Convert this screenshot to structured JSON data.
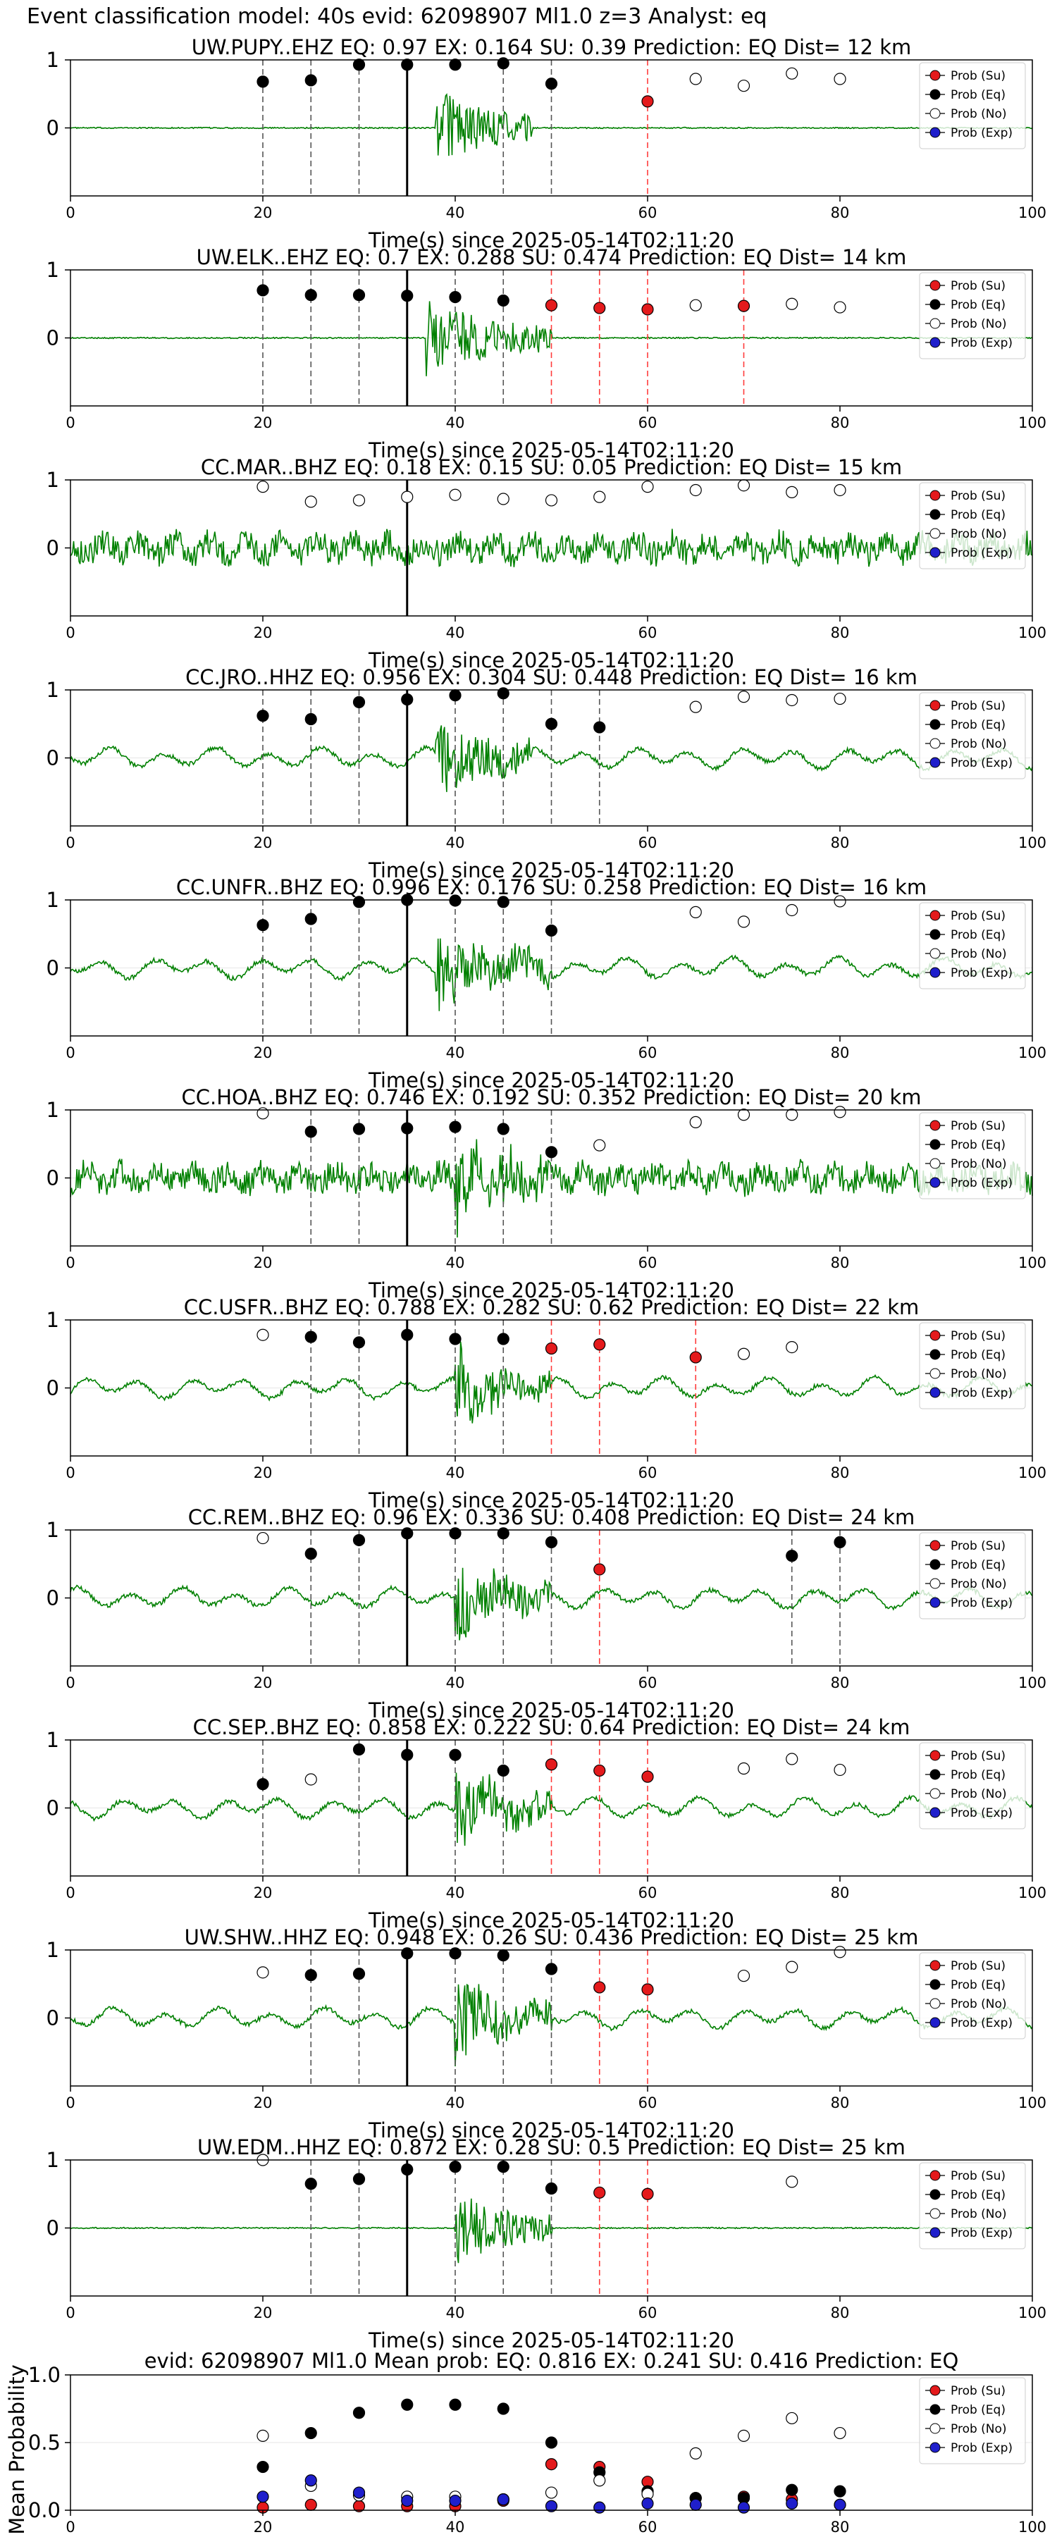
{
  "figure": {
    "main_title": "Event classification model: 40s evid: 62098907 Ml1.0 z=3 Analyst: eq"
  },
  "legend_labels": [
    "Prob (Su)",
    "Prob (Eq)",
    "Prob (No)",
    "Prob (Exp)"
  ],
  "colors": {
    "su": "#e41a1c",
    "eq": "#000000",
    "no": "#ffffff",
    "exp": "#1f1fcc",
    "trace": "#008000",
    "su_line": "#ff3b3b"
  },
  "chart_data": [
    {
      "type": "scatter",
      "title": "UW.PUPY..EHZ   EQ: 0.97  EX: 0.164  SU: 0.39   Prediction: EQ    Dist= 12 km",
      "xlabel": "Time(s) since 2025-05-14T02:11:20",
      "xlim": [
        0,
        100
      ],
      "yticks": [
        "1",
        "0"
      ],
      "xticks": [
        "0",
        "20",
        "40",
        "60",
        "80",
        "100"
      ],
      "trace_style": "quiet",
      "burst": [
        38,
        48
      ],
      "series": [
        {
          "name": "Prob (Eq)",
          "x": [
            20,
            25,
            30,
            35,
            40,
            45,
            50
          ],
          "y": [
            0.68,
            0.7,
            0.93,
            0.93,
            0.93,
            0.95,
            0.65
          ]
        },
        {
          "name": "Prob (Su)",
          "x": [
            60
          ],
          "y": [
            0.39
          ]
        },
        {
          "name": "Prob (No)",
          "x": [
            65,
            70,
            75,
            80
          ],
          "y": [
            0.72,
            0.62,
            0.8,
            0.72
          ]
        }
      ],
      "dashed_black": [
        20,
        25,
        30,
        45,
        50
      ],
      "dashed_red": [
        60
      ]
    },
    {
      "type": "scatter",
      "title": "UW.ELK..EHZ   EQ: 0.7  EX: 0.288  SU: 0.474   Prediction: EQ    Dist= 14 km",
      "xlabel": "Time(s) since 2025-05-14T02:11:20",
      "xlim": [
        0,
        100
      ],
      "yticks": [
        "1",
        "0"
      ],
      "xticks": [
        "0",
        "20",
        "40",
        "60",
        "80",
        "100"
      ],
      "trace_style": "quiet",
      "burst": [
        37,
        50
      ],
      "series": [
        {
          "name": "Prob (Eq)",
          "x": [
            20,
            25,
            30,
            35,
            40,
            45
          ],
          "y": [
            0.7,
            0.63,
            0.63,
            0.62,
            0.6,
            0.55
          ]
        },
        {
          "name": "Prob (Su)",
          "x": [
            50,
            55,
            60,
            70
          ],
          "y": [
            0.48,
            0.44,
            0.42,
            0.47
          ]
        },
        {
          "name": "Prob (No)",
          "x": [
            65,
            75,
            80
          ],
          "y": [
            0.48,
            0.5,
            0.45
          ]
        }
      ],
      "dashed_black": [
        20,
        25,
        30,
        40,
        45
      ],
      "dashed_red": [
        50,
        55,
        60,
        70
      ]
    },
    {
      "type": "scatter",
      "title": "CC.MAR..BHZ   EQ: 0.18  EX: 0.15  SU: 0.05   Prediction: EQ    Dist= 15 km",
      "xlabel": "Time(s) since 2025-05-14T02:11:20",
      "xlim": [
        0,
        100
      ],
      "yticks": [
        "1",
        "0"
      ],
      "xticks": [
        "0",
        "20",
        "40",
        "60",
        "80",
        "100"
      ],
      "trace_style": "noisy",
      "burst": null,
      "series": [
        {
          "name": "Prob (No)",
          "x": [
            20,
            25,
            30,
            35,
            40,
            45,
            50,
            55,
            60,
            65,
            70,
            75,
            80
          ],
          "y": [
            0.9,
            0.68,
            0.7,
            0.75,
            0.78,
            0.72,
            0.7,
            0.75,
            0.9,
            0.85,
            0.92,
            0.82,
            0.85
          ]
        }
      ],
      "dashed_black": [],
      "dashed_red": []
    },
    {
      "type": "scatter",
      "title": "CC.JRO..HHZ   EQ: 0.956  EX: 0.304  SU: 0.448   Prediction: EQ    Dist= 16 km",
      "xlabel": "Time(s) since 2025-05-14T02:11:20",
      "xlim": [
        0,
        100
      ],
      "yticks": [
        "1",
        "0"
      ],
      "xticks": [
        "0",
        "20",
        "40",
        "60",
        "80",
        "100"
      ],
      "trace_style": "smooth",
      "burst": [
        38,
        48
      ],
      "series": [
        {
          "name": "Prob (Eq)",
          "x": [
            20,
            25,
            30,
            35,
            40,
            45,
            50,
            55
          ],
          "y": [
            0.62,
            0.57,
            0.82,
            0.86,
            0.92,
            0.95,
            0.5,
            0.45
          ]
        },
        {
          "name": "Prob (No)",
          "x": [
            65,
            70,
            75,
            80
          ],
          "y": [
            0.75,
            0.9,
            0.85,
            0.87
          ]
        }
      ],
      "dashed_black": [
        20,
        25,
        30,
        40,
        45,
        50,
        55
      ],
      "dashed_red": []
    },
    {
      "type": "scatter",
      "title": "CC.UNFR..BHZ   EQ: 0.996  EX: 0.176  SU: 0.258   Prediction: EQ    Dist= 16 km",
      "xlabel": "Time(s) since 2025-05-14T02:11:20",
      "xlim": [
        0,
        100
      ],
      "yticks": [
        "1",
        "0"
      ],
      "xticks": [
        "0",
        "20",
        "40",
        "60",
        "80",
        "100"
      ],
      "trace_style": "smooth",
      "burst": [
        38,
        50
      ],
      "series": [
        {
          "name": "Prob (Eq)",
          "x": [
            20,
            25,
            30,
            35,
            40,
            45,
            50
          ],
          "y": [
            0.63,
            0.72,
            0.97,
            1.0,
            0.99,
            0.97,
            0.55
          ]
        },
        {
          "name": "Prob (No)",
          "x": [
            65,
            70,
            75,
            80
          ],
          "y": [
            0.82,
            0.68,
            0.85,
            0.98
          ]
        }
      ],
      "dashed_black": [
        20,
        25,
        30,
        40,
        45,
        50
      ],
      "dashed_red": []
    },
    {
      "type": "scatter",
      "title": "CC.HOA..BHZ   EQ: 0.746  EX: 0.192  SU: 0.352   Prediction: EQ    Dist= 20 km",
      "xlabel": "Time(s) since 2025-05-14T02:11:20",
      "xlim": [
        0,
        100
      ],
      "yticks": [
        "1",
        "0"
      ],
      "xticks": [
        "0",
        "20",
        "40",
        "60",
        "80",
        "100"
      ],
      "trace_style": "noisy",
      "burst": [
        40,
        50
      ],
      "series": [
        {
          "name": "Prob (Eq)",
          "x": [
            25,
            30,
            35,
            40,
            45,
            50
          ],
          "y": [
            0.68,
            0.72,
            0.73,
            0.75,
            0.72,
            0.38
          ]
        },
        {
          "name": "Prob (No)",
          "x": [
            20,
            55,
            65,
            70,
            75,
            80
          ],
          "y": [
            0.95,
            0.48,
            0.82,
            0.93,
            0.93,
            0.97
          ]
        }
      ],
      "dashed_black": [
        25,
        30,
        40,
        45,
        50
      ],
      "dashed_red": []
    },
    {
      "type": "scatter",
      "title": "CC.USFR..BHZ   EQ: 0.788  EX: 0.282  SU: 0.62   Prediction: EQ    Dist= 22 km",
      "xlabel": "Time(s) since 2025-05-14T02:11:20",
      "xlim": [
        0,
        100
      ],
      "yticks": [
        "1",
        "0"
      ],
      "xticks": [
        "0",
        "20",
        "40",
        "60",
        "80",
        "100"
      ],
      "trace_style": "smooth",
      "burst": [
        40,
        50
      ],
      "series": [
        {
          "name": "Prob (Eq)",
          "x": [
            25,
            30,
            35,
            40,
            45
          ],
          "y": [
            0.75,
            0.67,
            0.78,
            0.72,
            0.72
          ]
        },
        {
          "name": "Prob (Su)",
          "x": [
            50,
            55,
            65
          ],
          "y": [
            0.58,
            0.64,
            0.45
          ]
        },
        {
          "name": "Prob (No)",
          "x": [
            20,
            70,
            75
          ],
          "y": [
            0.78,
            0.5,
            0.6
          ]
        }
      ],
      "dashed_black": [
        25,
        30,
        40,
        45
      ],
      "dashed_red": [
        50,
        55,
        65
      ]
    },
    {
      "type": "scatter",
      "title": "CC.REM..BHZ   EQ: 0.96  EX: 0.336  SU: 0.408   Prediction: EQ    Dist= 24 km",
      "xlabel": "Time(s) since 2025-05-14T02:11:20",
      "xlim": [
        0,
        100
      ],
      "yticks": [
        "1",
        "0"
      ],
      "xticks": [
        "0",
        "20",
        "40",
        "60",
        "80",
        "100"
      ],
      "trace_style": "smooth",
      "burst": [
        40,
        50
      ],
      "series": [
        {
          "name": "Prob (Eq)",
          "x": [
            25,
            30,
            35,
            40,
            45,
            50,
            75,
            80
          ],
          "y": [
            0.65,
            0.85,
            0.95,
            0.95,
            0.95,
            0.82,
            0.62,
            0.82
          ]
        },
        {
          "name": "Prob (Su)",
          "x": [
            55
          ],
          "y": [
            0.42
          ]
        },
        {
          "name": "Prob (No)",
          "x": [
            20
          ],
          "y": [
            0.88
          ]
        }
      ],
      "dashed_black": [
        25,
        30,
        40,
        45,
        50,
        75,
        80
      ],
      "dashed_red": [
        55
      ]
    },
    {
      "type": "scatter",
      "title": "CC.SEP..BHZ   EQ: 0.858  EX: 0.222  SU: 0.64   Prediction: EQ    Dist= 24 km",
      "xlabel": "Time(s) since 2025-05-14T02:11:20",
      "xlim": [
        0,
        100
      ],
      "yticks": [
        "1",
        "0"
      ],
      "xticks": [
        "0",
        "20",
        "40",
        "60",
        "80",
        "100"
      ],
      "trace_style": "smooth",
      "burst": [
        40,
        50
      ],
      "series": [
        {
          "name": "Prob (Eq)",
          "x": [
            20,
            30,
            35,
            40,
            45
          ],
          "y": [
            0.35,
            0.86,
            0.78,
            0.78,
            0.55
          ]
        },
        {
          "name": "Prob (Su)",
          "x": [
            50,
            55,
            60
          ],
          "y": [
            0.64,
            0.55,
            0.46
          ]
        },
        {
          "name": "Prob (No)",
          "x": [
            25,
            70,
            75,
            80
          ],
          "y": [
            0.42,
            0.58,
            0.72,
            0.56
          ]
        }
      ],
      "dashed_black": [
        20,
        30,
        40,
        45
      ],
      "dashed_red": [
        50,
        55,
        60
      ]
    },
    {
      "type": "scatter",
      "title": "UW.SHW..HHZ   EQ: 0.948  EX: 0.26  SU: 0.436   Prediction: EQ    Dist= 25 km",
      "xlabel": "Time(s) since 2025-05-14T02:11:20",
      "xlim": [
        0,
        100
      ],
      "yticks": [
        "1",
        "0"
      ],
      "xticks": [
        "0",
        "20",
        "40",
        "60",
        "80",
        "100"
      ],
      "trace_style": "smooth",
      "burst": [
        40,
        50
      ],
      "series": [
        {
          "name": "Prob (Eq)",
          "x": [
            25,
            30,
            35,
            40,
            45,
            50
          ],
          "y": [
            0.63,
            0.65,
            0.95,
            0.95,
            0.92,
            0.72
          ]
        },
        {
          "name": "Prob (Su)",
          "x": [
            55,
            60
          ],
          "y": [
            0.45,
            0.42
          ]
        },
        {
          "name": "Prob (No)",
          "x": [
            20,
            70,
            75,
            80
          ],
          "y": [
            0.67,
            0.62,
            0.75,
            0.97
          ]
        }
      ],
      "dashed_black": [
        25,
        30,
        40,
        45,
        50
      ],
      "dashed_red": [
        55,
        60
      ]
    },
    {
      "type": "scatter",
      "title": "UW.EDM..HHZ   EQ: 0.872  EX: 0.28  SU: 0.5   Prediction: EQ    Dist= 25 km",
      "xlabel": "Time(s) since 2025-05-14T02:11:20",
      "xlim": [
        0,
        100
      ],
      "yticks": [
        "1",
        "0"
      ],
      "xticks": [
        "0",
        "20",
        "40",
        "60",
        "80",
        "100"
      ],
      "trace_style": "quiet",
      "burst": [
        40,
        50
      ],
      "series": [
        {
          "name": "Prob (Eq)",
          "x": [
            25,
            30,
            35,
            40,
            45,
            50
          ],
          "y": [
            0.65,
            0.72,
            0.86,
            0.9,
            0.9,
            0.58
          ]
        },
        {
          "name": "Prob (Su)",
          "x": [
            55,
            60
          ],
          "y": [
            0.52,
            0.5
          ]
        },
        {
          "name": "Prob (No)",
          "x": [
            20,
            75
          ],
          "y": [
            1.0,
            0.68
          ]
        }
      ],
      "dashed_black": [
        25,
        30,
        40,
        45,
        50
      ],
      "dashed_red": [
        55,
        60
      ]
    },
    {
      "type": "scatter",
      "title": "evid: 62098907  Ml1.0   Mean prob:   EQ: 0.816  EX: 0.241  SU: 0.416   Prediction: EQ",
      "xlabel": "",
      "ylabel": "Mean Probability",
      "xlim": [
        0,
        100
      ],
      "ylim": [
        0,
        1
      ],
      "yticks": [
        "0.0",
        "0.5",
        "1.0"
      ],
      "xticks": [
        "0",
        "20",
        "40",
        "60",
        "80",
        "100"
      ],
      "series": [
        {
          "name": "Prob (Su)",
          "x": [
            20,
            25,
            30,
            35,
            40,
            45,
            50,
            55,
            60,
            65,
            70,
            75,
            80
          ],
          "y": [
            0.02,
            0.04,
            0.03,
            0.03,
            0.03,
            0.07,
            0.34,
            0.32,
            0.21,
            0.09,
            0.1,
            0.08,
            0.04
          ]
        },
        {
          "name": "Prob (Eq)",
          "x": [
            20,
            25,
            30,
            35,
            40,
            45,
            50,
            55,
            60,
            65,
            70,
            75,
            80
          ],
          "y": [
            0.32,
            0.57,
            0.72,
            0.78,
            0.78,
            0.75,
            0.5,
            0.28,
            0.14,
            0.09,
            0.09,
            0.15,
            0.14
          ]
        },
        {
          "name": "Prob (No)",
          "x": [
            20,
            25,
            30,
            35,
            40,
            45,
            50,
            55,
            60,
            65,
            70,
            75,
            80
          ],
          "y": [
            0.55,
            0.18,
            0.11,
            0.1,
            0.1,
            0.08,
            0.13,
            0.22,
            0.12,
            0.42,
            0.55,
            0.68,
            0.57
          ]
        },
        {
          "name": "Prob (Exp)",
          "x": [
            20,
            25,
            30,
            35,
            40,
            45,
            50,
            55,
            60,
            65,
            70,
            75,
            80
          ],
          "y": [
            0.1,
            0.22,
            0.13,
            0.07,
            0.07,
            0.08,
            0.03,
            0.02,
            0.05,
            0.04,
            0.02,
            0.05,
            0.04
          ]
        }
      ]
    }
  ]
}
